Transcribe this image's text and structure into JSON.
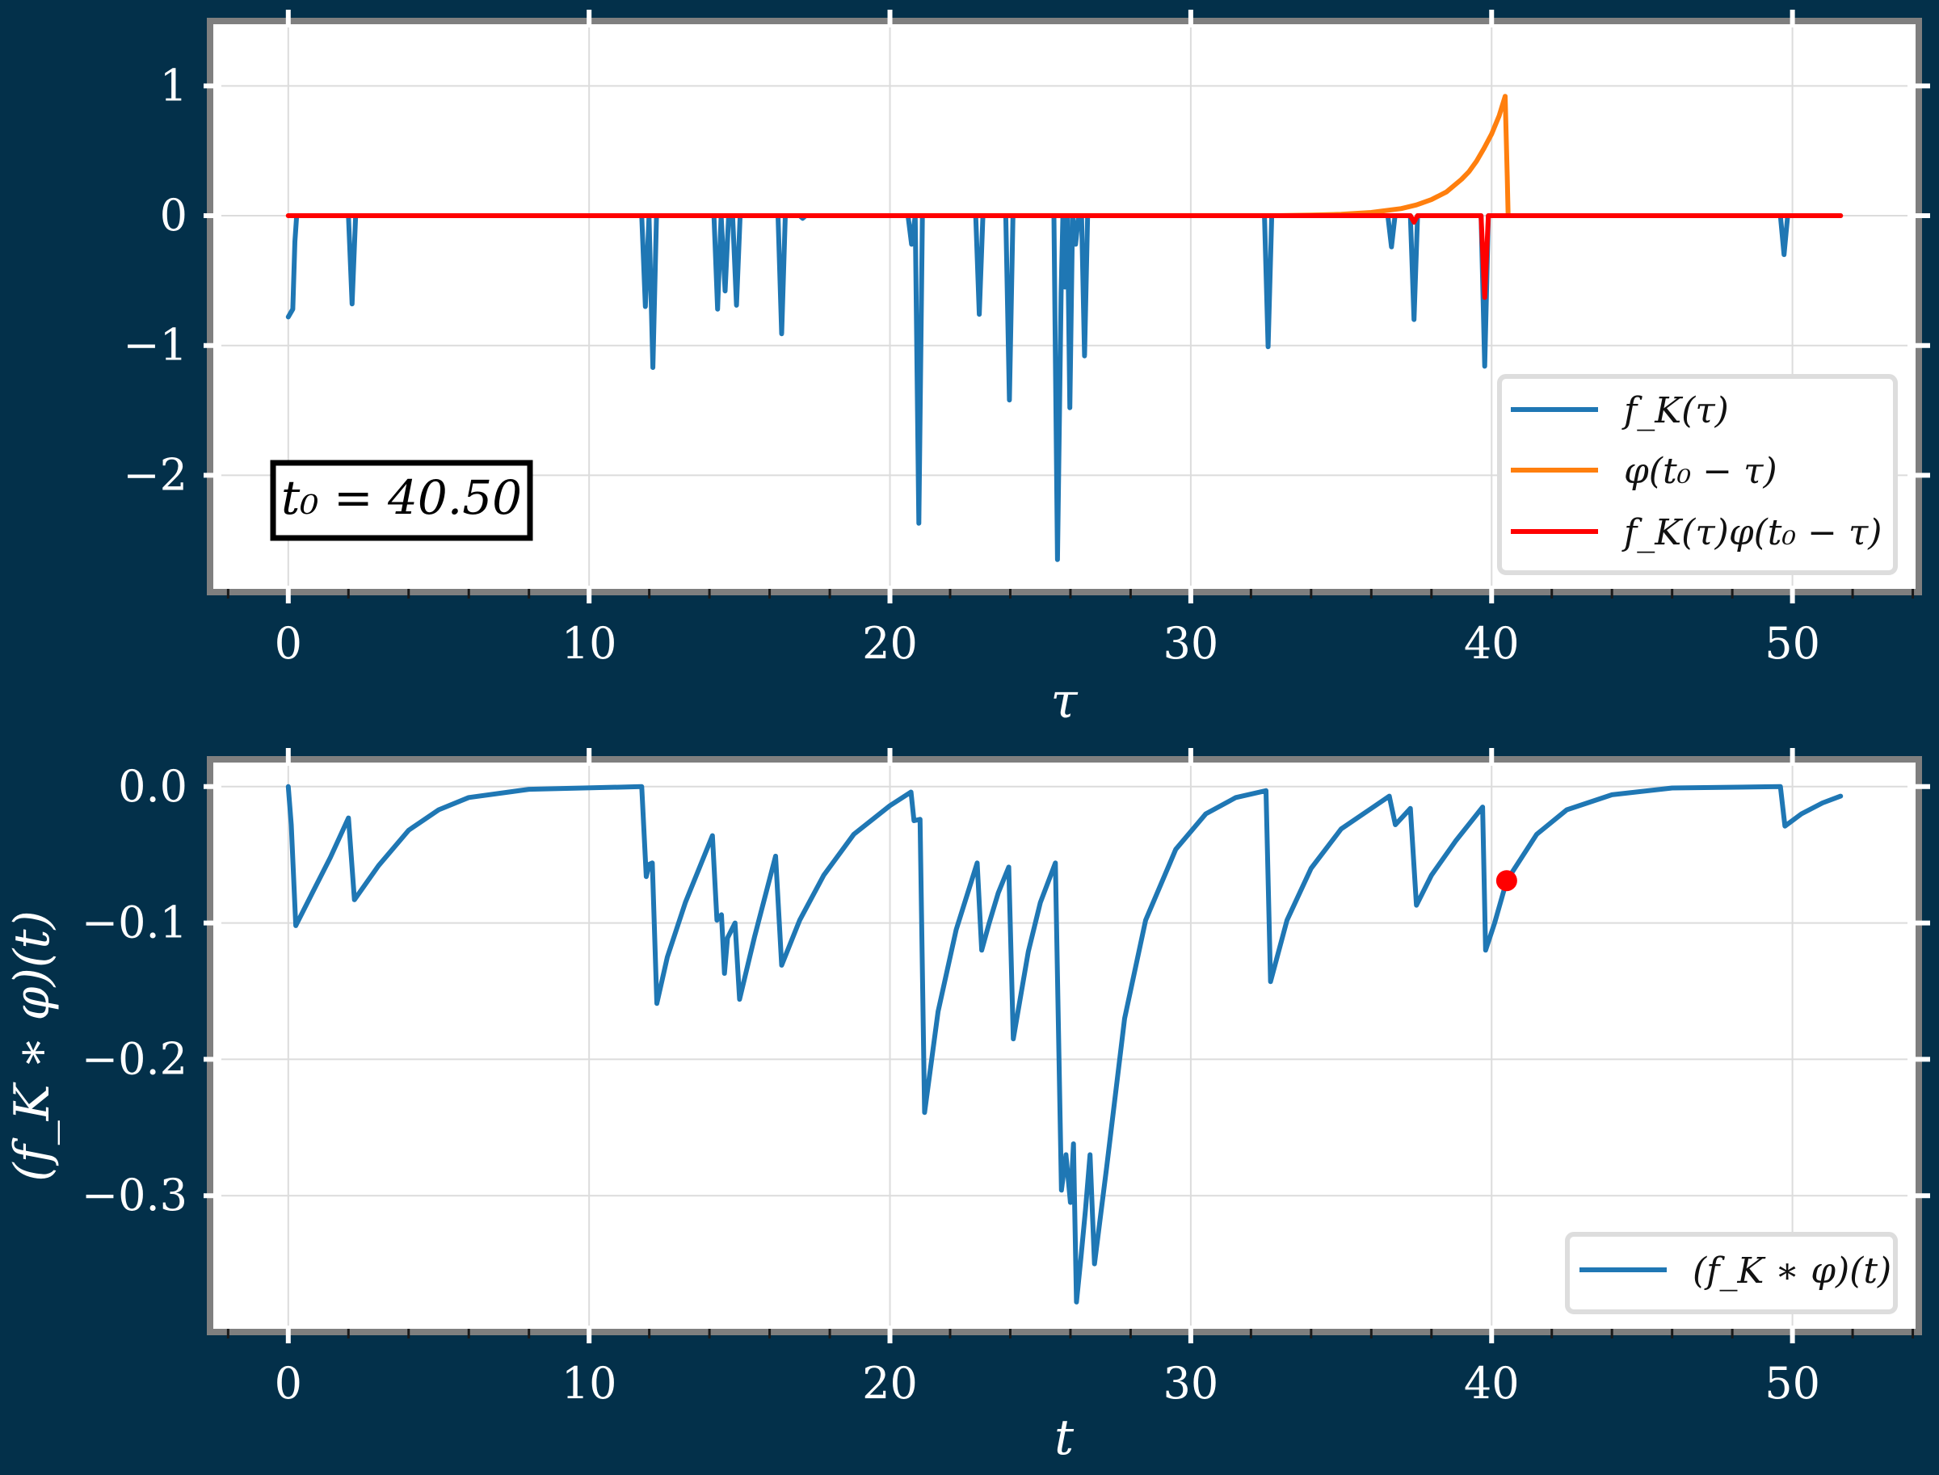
{
  "colors": {
    "background": "#03304a",
    "axes_face": "#ffffff",
    "axes_edge": "#7f7f7f",
    "grid": "#dcdcdc",
    "blue": "#1f77b4",
    "orange": "#ff7f0e",
    "red": "#ff0000",
    "text": "#ffffff"
  },
  "chart_data": [
    {
      "type": "line",
      "xlabel": "τ",
      "ylabel": "",
      "xlim": [
        -2.6,
        54.2
      ],
      "ylim": [
        -2.9,
        1.5
      ],
      "xticks": [
        0,
        10,
        20,
        30,
        40,
        50
      ],
      "xtick_labels": [
        "0",
        "10",
        "20",
        "30",
        "40",
        "50"
      ],
      "yticks": [
        1,
        0,
        -1,
        -2
      ],
      "ytick_labels": [
        "1",
        "0",
        "−1",
        "−2"
      ],
      "grid": true,
      "legend_position": "lower-right",
      "annotation": "t₀ = 40.50",
      "series": [
        {
          "name": "f_K(τ)",
          "color": "#1f77b4",
          "x": [
            0,
            0.15,
            0.22,
            0.28,
            2.0,
            2.12,
            2.24,
            11.75,
            11.87,
            11.99,
            12.12,
            12.24,
            12.37,
            14.15,
            14.27,
            14.39,
            14.52,
            14.64,
            14.77,
            14.9,
            15.02,
            15.14,
            16.28,
            16.4,
            16.52,
            17.0,
            17.1,
            17.2,
            20.6,
            20.72,
            20.84,
            20.96,
            21.08,
            21.2,
            22.85,
            22.97,
            23.09,
            23.85,
            23.97,
            24.09,
            25.45,
            25.57,
            25.69,
            25.75,
            25.82,
            25.9,
            25.98,
            26.07,
            26.17,
            26.27,
            26.37,
            26.47,
            26.57,
            26.67,
            26.77,
            32.45,
            32.57,
            32.69,
            36.55,
            36.67,
            36.79,
            37.3,
            37.42,
            37.54,
            39.65,
            39.77,
            39.89,
            49.6,
            49.72,
            49.84,
            51.6
          ],
          "y": [
            -0.78,
            -0.72,
            -0.2,
            0,
            0,
            -0.68,
            0,
            0,
            -0.7,
            0,
            -1.17,
            0,
            0,
            0,
            -0.72,
            0,
            -0.58,
            0,
            0,
            -0.69,
            0,
            0,
            0,
            -0.91,
            0,
            0,
            -0.02,
            0,
            0,
            -0.22,
            0,
            -2.37,
            0,
            0,
            0,
            -0.76,
            0,
            0,
            -1.42,
            0,
            0,
            -2.65,
            -0.6,
            0,
            -0.55,
            0,
            -1.48,
            0,
            -0.22,
            0,
            0,
            -1.08,
            0,
            0,
            0,
            0,
            -1.01,
            0,
            0,
            -0.24,
            0,
            0,
            -0.8,
            0,
            0,
            -1.16,
            0,
            0,
            -0.3,
            0,
            0
          ]
        },
        {
          "name": "φ(t₀ − τ)",
          "color": "#ff7f0e",
          "x": [
            0,
            33.0,
            34.0,
            35.0,
            36.0,
            37.0,
            37.5,
            38.0,
            38.5,
            39.0,
            39.25,
            39.5,
            39.75,
            40.0,
            40.25,
            40.45,
            40.52,
            40.55,
            51.6
          ],
          "y": [
            0,
            0.001,
            0.005,
            0.011,
            0.025,
            0.055,
            0.083,
            0.124,
            0.183,
            0.28,
            0.34,
            0.42,
            0.52,
            0.63,
            0.77,
            0.92,
            0.3,
            0,
            0
          ]
        },
        {
          "name": "f_K(τ)φ(t₀ − τ)",
          "color": "#ff0000",
          "x": [
            0,
            37.3,
            37.42,
            37.54,
            39.65,
            39.77,
            39.89,
            51.6
          ],
          "y": [
            0,
            0,
            -0.05,
            0,
            0,
            -0.63,
            0,
            0
          ]
        }
      ]
    },
    {
      "type": "line",
      "xlabel": "t",
      "ylabel": "(f_K ∗ φ)(t)",
      "xlim": [
        -2.6,
        54.2
      ],
      "ylim": [
        -0.4,
        0.02
      ],
      "xticks": [
        0,
        10,
        20,
        30,
        40,
        50
      ],
      "xtick_labels": [
        "0",
        "10",
        "20",
        "30",
        "40",
        "50"
      ],
      "yticks": [
        0.0,
        -0.1,
        -0.2,
        -0.3
      ],
      "ytick_labels": [
        "0.0",
        "−0.1",
        "−0.2",
        "−0.3"
      ],
      "grid": true,
      "legend_position": "lower-right",
      "marker": {
        "x": 40.5,
        "y": -0.069,
        "color": "#ff0000"
      },
      "series": [
        {
          "name": "(f_K ∗ φ)(t)",
          "color": "#1f77b4",
          "x": [
            0,
            0.1,
            0.25,
            0.8,
            1.4,
            2.0,
            2.2,
            3.0,
            4.0,
            5.0,
            6.0,
            8.0,
            11.75,
            11.9,
            12.0,
            12.1,
            12.25,
            12.6,
            13.2,
            14.1,
            14.25,
            14.4,
            14.5,
            14.6,
            14.85,
            15.0,
            15.5,
            16.2,
            16.4,
            17.0,
            17.8,
            18.8,
            20.0,
            20.7,
            20.8,
            21.0,
            21.15,
            21.6,
            22.2,
            22.9,
            23.05,
            23.3,
            23.6,
            23.95,
            24.1,
            24.6,
            25.0,
            25.5,
            25.7,
            25.85,
            26.0,
            26.1,
            26.2,
            26.35,
            26.5,
            26.65,
            26.8,
            27.2,
            27.8,
            28.5,
            29.5,
            30.5,
            31.5,
            32.5,
            32.65,
            33.2,
            34.0,
            35.0,
            36.0,
            36.6,
            36.8,
            37.3,
            37.5,
            38.0,
            38.8,
            39.7,
            39.8,
            40.1,
            40.5,
            41.5,
            42.5,
            44.0,
            46.0,
            49.6,
            49.75,
            50.3,
            51.0,
            51.6
          ],
          "y": [
            0,
            -0.028,
            -0.102,
            -0.078,
            -0.052,
            -0.023,
            -0.083,
            -0.058,
            -0.032,
            -0.017,
            -0.008,
            -0.002,
            0,
            -0.066,
            -0.057,
            -0.056,
            -0.159,
            -0.125,
            -0.085,
            -0.036,
            -0.098,
            -0.094,
            -0.137,
            -0.111,
            -0.1,
            -0.156,
            -0.11,
            -0.051,
            -0.131,
            -0.098,
            -0.065,
            -0.035,
            -0.014,
            -0.004,
            -0.025,
            -0.024,
            -0.239,
            -0.165,
            -0.105,
            -0.056,
            -0.12,
            -0.1,
            -0.078,
            -0.059,
            -0.185,
            -0.121,
            -0.085,
            -0.056,
            -0.296,
            -0.27,
            -0.305,
            -0.262,
            -0.378,
            -0.345,
            -0.31,
            -0.27,
            -0.35,
            -0.28,
            -0.17,
            -0.098,
            -0.046,
            -0.02,
            -0.008,
            -0.003,
            -0.143,
            -0.098,
            -0.06,
            -0.031,
            -0.016,
            -0.007,
            -0.028,
            -0.016,
            -0.087,
            -0.065,
            -0.04,
            -0.015,
            -0.12,
            -0.1,
            -0.069,
            -0.035,
            -0.017,
            -0.006,
            -0.001,
            0,
            -0.029,
            -0.02,
            -0.012,
            -0.007
          ]
        }
      ]
    }
  ]
}
